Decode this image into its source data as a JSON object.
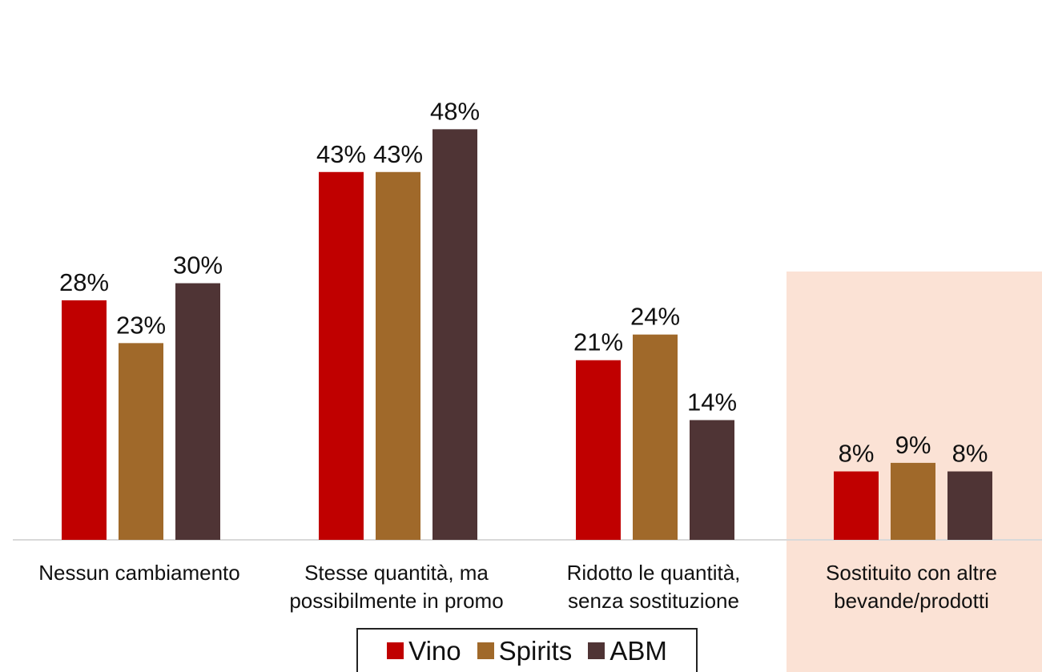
{
  "chart_data": {
    "type": "bar",
    "title": "",
    "xlabel": "",
    "ylabel": "",
    "ylim": [
      0,
      0.56
    ],
    "grid": false,
    "legend_position": "bottom",
    "categories": [
      [
        "Nessun cambiamento"
      ],
      [
        "Stesse quantità, ma",
        "possibilmente in promo"
      ],
      [
        "Ridotto le quantità,",
        "senza sostituzione"
      ],
      [
        "Sostituito con altre",
        "bevande/prodotti"
      ]
    ],
    "highlight_category_index": 3,
    "series": [
      {
        "name": "Vino",
        "color": "#C00000",
        "values": [
          0.28,
          0.43,
          0.21,
          0.08
        ],
        "labels": [
          "28%",
          "43%",
          "21%",
          "8%"
        ]
      },
      {
        "name": "Spirits",
        "color": "#A0692A",
        "values": [
          0.23,
          0.43,
          0.24,
          0.09
        ],
        "labels": [
          "23%",
          "43%",
          "24%",
          "9%"
        ]
      },
      {
        "name": "ABM",
        "color": "#4F3435",
        "values": [
          0.3,
          0.48,
          0.14,
          0.08
        ],
        "labels": [
          "30%",
          "48%",
          "14%",
          "8%"
        ]
      }
    ]
  },
  "colors": {
    "highlight_background": "#FBE2D5",
    "axis_line": "#D9D9D9"
  }
}
